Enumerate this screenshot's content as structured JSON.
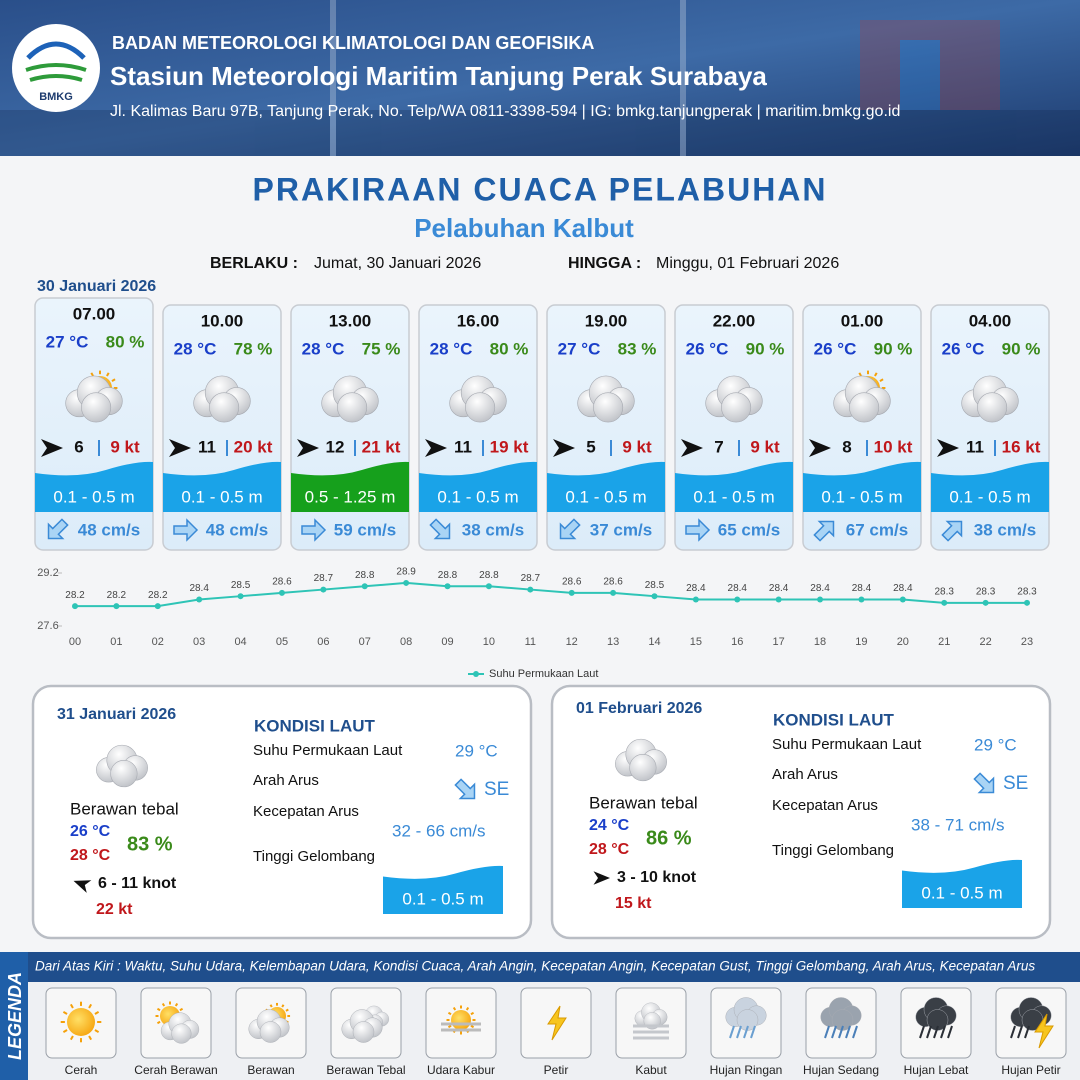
{
  "header": {
    "logo": "BMKG",
    "organization": "BADAN METEOROLOGI KLIMATOLOGI DAN GEOFISIKA",
    "station": "Stasiun Meteorologi Maritim Tanjung Perak Surabaya",
    "address": "Jl. Kalimas Baru 97B, Tanjung Perak, No. Telp/WA 0811-3398-594 | IG: bmkg.tanjungperak | maritim.bmkg.go.id"
  },
  "title": "PRAKIRAAN CUACA PELABUHAN",
  "subtitle": "Pelabuhan Kalbut",
  "validity": {
    "from_label": "BERLAKU :",
    "from": "Jumat, 30 Januari 2026",
    "to_label": "HINGGA :",
    "to": "Minggu, 01 Februari 2026"
  },
  "day_label": "30 Januari 2026",
  "forecasts": [
    {
      "time": "07.00",
      "temp": "27 °C",
      "humidity": "80 %",
      "wind": "6",
      "gust": "9 kt",
      "wave": "0.1 - 0.5 m",
      "wave_color": "#1aa3e8",
      "current": "48 cm/s"
    },
    {
      "time": "10.00",
      "temp": "28 °C",
      "humidity": "78 %",
      "wind": "11",
      "gust": "20 kt",
      "wave": "0.1 - 0.5 m",
      "wave_color": "#1aa3e8",
      "current": "48 cm/s"
    },
    {
      "time": "13.00",
      "temp": "28 °C",
      "humidity": "75 %",
      "wind": "12",
      "gust": "21 kt",
      "wave": "0.5 - 1.25 m",
      "wave_color": "#16a01c",
      "current": "59 cm/s"
    },
    {
      "time": "16.00",
      "temp": "28 °C",
      "humidity": "80 %",
      "wind": "11",
      "gust": "19 kt",
      "wave": "0.1 - 0.5 m",
      "wave_color": "#1aa3e8",
      "current": "38 cm/s"
    },
    {
      "time": "19.00",
      "temp": "27 °C",
      "humidity": "83 %",
      "wind": "5",
      "gust": "9 kt",
      "wave": "0.1 - 0.5 m",
      "wave_color": "#1aa3e8",
      "current": "37 cm/s"
    },
    {
      "time": "22.00",
      "temp": "26 °C",
      "humidity": "90 %",
      "wind": "7",
      "gust": "9 kt",
      "wave": "0.1 - 0.5 m",
      "wave_color": "#1aa3e8",
      "current": "65 cm/s"
    },
    {
      "time": "01.00",
      "temp": "26 °C",
      "humidity": "90 %",
      "wind": "8",
      "gust": "10 kt",
      "wave": "0.1 - 0.5 m",
      "wave_color": "#1aa3e8",
      "current": "67 cm/s"
    },
    {
      "time": "04.00",
      "temp": "26 °C",
      "humidity": "90 %",
      "wind": "11",
      "gust": "16 kt",
      "wave": "0.1 - 0.5 m",
      "wave_color": "#1aa3e8",
      "current": "38 cm/s"
    }
  ],
  "chart_data": {
    "type": "line",
    "categories": [
      "00",
      "01",
      "02",
      "03",
      "04",
      "05",
      "06",
      "07",
      "08",
      "09",
      "10",
      "11",
      "12",
      "13",
      "14",
      "15",
      "16",
      "17",
      "18",
      "19",
      "20",
      "21",
      "22",
      "23"
    ],
    "series": [
      {
        "name": "Suhu Permukaan Laut",
        "color": "#2ec4b6",
        "values": [
          28.2,
          28.2,
          28.2,
          28.4,
          28.5,
          28.6,
          28.7,
          28.8,
          28.9,
          28.8,
          28.8,
          28.7,
          28.6,
          28.6,
          28.5,
          28.4,
          28.4,
          28.4,
          28.4,
          28.4,
          28.4,
          28.3,
          28.3,
          28.3
        ]
      }
    ],
    "ylim": [
      27.6,
      29.2
    ],
    "yticks": [
      27.6,
      29.2
    ],
    "grid": false
  },
  "summaries": [
    {
      "date": "31 Januari 2026",
      "condition": "Berawan tebal",
      "temp_min": "26 °C",
      "temp_max": "28 °C",
      "humidity": "83 %",
      "wind": "6  - 11 knot",
      "gust": "22 kt",
      "section": "KONDISI LAUT",
      "sst_label": "Suhu Permukaan Laut",
      "sst": "29 °C",
      "dir_label": "Arah Arus",
      "dir": "SE",
      "speed_label": "Kecepatan Arus",
      "speed": "32  - 66 cm/s",
      "wave_label": "Tinggi Gelombang",
      "wave": "0.1 - 0.5 m"
    },
    {
      "date": "01 Februari 2026",
      "condition": "Berawan tebal",
      "temp_min": "24 °C",
      "temp_max": "28 °C",
      "humidity": "86 %",
      "wind": "3  - 10 knot",
      "gust": "15 kt",
      "section": "KONDISI LAUT",
      "sst_label": "Suhu Permukaan Laut",
      "sst": "29 °C",
      "dir_label": "Arah Arus",
      "dir": "SE",
      "speed_label": "Kecepatan Arus",
      "speed": "38 - 71 cm/s",
      "wave_label": "Tinggi Gelombang",
      "wave": "0.1 - 0.5 m"
    }
  ],
  "legend": {
    "title": "LEGENDA",
    "description": "Dari Atas Kiri : Waktu, Suhu Udara, Kelembapan Udara, Kondisi Cuaca, Arah Angin, Kecepatan Angin, Kecepatan Gust, Tinggi Gelombang, Arah Arus, Kecepatan Arus",
    "items": [
      "Cerah",
      "Cerah Berawan",
      "Berawan",
      "Berawan Tebal",
      "Udara Kabur",
      "Petir",
      "Kabut",
      "Hujan Ringan",
      "Hujan Sedang",
      "Hujan Lebat",
      "Hujan Petir"
    ]
  }
}
